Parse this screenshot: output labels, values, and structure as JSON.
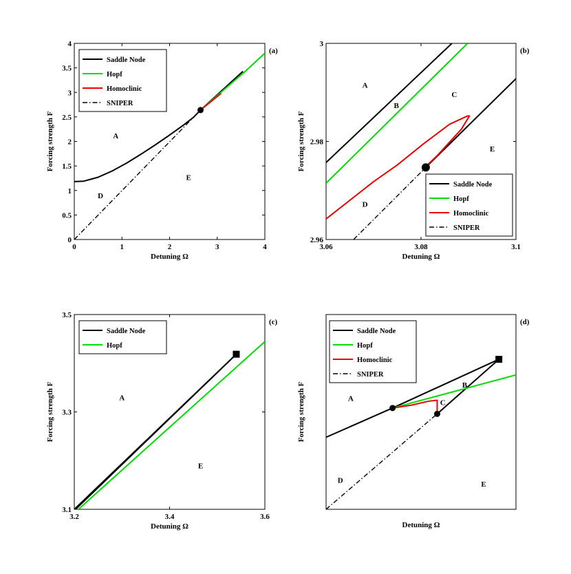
{
  "figure": {
    "xlabel": "Detuning Ω",
    "ylabel": "Forcing strength F"
  },
  "colors": {
    "saddle_node": "#000000",
    "hopf": "#00dd00",
    "homoclinic": "#ee0000",
    "sniper": "#000000"
  },
  "chart_data": [
    {
      "panel": "a",
      "tag": "(a)",
      "type": "line",
      "xlabel": "Detuning Ω",
      "ylabel": "Forcing strength F",
      "xlim": [
        0,
        4
      ],
      "ylim": [
        0,
        4
      ],
      "xticks": [
        0,
        1,
        2,
        3,
        4
      ],
      "yticks": [
        0,
        0.5,
        1,
        1.5,
        2,
        2.5,
        3,
        3.5,
        4
      ],
      "xticklabels": [
        "0",
        "1",
        "2",
        "3",
        "4"
      ],
      "yticklabels": [
        "0",
        "0.5",
        "1",
        "1.5",
        "2",
        "2.5",
        "3",
        "3.5",
        "4"
      ],
      "legend": [
        "Saddle Node",
        "Hopf",
        "Homoclinic",
        "SNIPER"
      ],
      "legend_position": "top-left",
      "series": [
        {
          "name": "Saddle Node",
          "style": "solid",
          "color": "#000000",
          "x": [
            0,
            0.2,
            0.5,
            0.8,
            1.1,
            1.4,
            1.7,
            2.0,
            2.3,
            2.5,
            2.65
          ],
          "y": [
            1.18,
            1.19,
            1.27,
            1.4,
            1.56,
            1.74,
            1.93,
            2.13,
            2.34,
            2.49,
            2.64
          ]
        },
        {
          "name": "Saddle Node",
          "style": "solid",
          "color": "#000000",
          "x": [
            2.65,
            3.54
          ],
          "y": [
            2.64,
            3.43
          ]
        },
        {
          "name": "Hopf",
          "style": "solid",
          "color": "#00dd00",
          "x": [
            2.65,
            3.1,
            3.6,
            4.0
          ],
          "y": [
            2.64,
            3.02,
            3.44,
            3.8
          ]
        },
        {
          "name": "Homoclinic",
          "style": "solid",
          "color": "#ee0000",
          "x": [
            2.65,
            3.08
          ],
          "y": [
            2.64,
            2.98
          ]
        },
        {
          "name": "SNIPER",
          "style": "dashdot",
          "color": "#000000",
          "x": [
            0,
            2.65
          ],
          "y": [
            0,
            2.64
          ]
        }
      ],
      "markers": [
        {
          "shape": "circle",
          "x": 2.65,
          "y": 2.64
        }
      ],
      "regions": [
        {
          "label": "A",
          "x": 0.87,
          "y": 2.12
        },
        {
          "label": "D",
          "x": 0.55,
          "y": 0.9
        },
        {
          "label": "E",
          "x": 2.4,
          "y": 1.27
        }
      ]
    },
    {
      "panel": "b",
      "tag": "(b)",
      "type": "line",
      "xlabel": "Detuning Ω",
      "ylabel": "Forcing strength F",
      "xlim": [
        3.06,
        3.1
      ],
      "ylim": [
        2.96,
        3.0
      ],
      "xticks": [
        3.06,
        3.08,
        3.1
      ],
      "yticks": [
        2.96,
        2.98,
        3.0
      ],
      "xticklabels": [
        "3.06",
        "3.08",
        "3.1"
      ],
      "yticklabels": [
        "2.96",
        "2.98",
        "3"
      ],
      "legend": [
        "Saddle Node",
        "Hopf",
        "Homoclinic",
        "SNIPER"
      ],
      "legend_position": "bottom-right",
      "series": [
        {
          "name": "Saddle Node",
          "style": "solid",
          "color": "#000000",
          "x": [
            3.06,
            3.0865
          ],
          "y": [
            2.9757,
            3.0
          ]
        },
        {
          "name": "Saddle Node",
          "style": "solid",
          "color": "#000000",
          "x": [
            3.081,
            3.1
          ],
          "y": [
            2.9747,
            2.9928
          ]
        },
        {
          "name": "Hopf",
          "style": "solid",
          "color": "#00dd00",
          "x": [
            3.06,
            3.0898
          ],
          "y": [
            2.9715,
            3.0
          ]
        },
        {
          "name": "Homoclinic",
          "style": "solid",
          "color": "#ee0000",
          "x": [
            3.06,
            3.07,
            3.075,
            3.0805,
            3.086,
            3.0898,
            3.0902,
            3.0885,
            3.0835,
            3.081
          ],
          "y": [
            2.9642,
            2.9718,
            2.9752,
            2.9795,
            2.9835,
            2.9852,
            2.9852,
            2.9825,
            2.9772,
            2.9749
          ]
        },
        {
          "name": "SNIPER",
          "style": "dashdot",
          "color": "#000000",
          "x": [
            3.0658,
            3.081
          ],
          "y": [
            2.96,
            2.9747
          ]
        }
      ],
      "markers": [
        {
          "shape": "circle",
          "x": 3.081,
          "y": 2.9747
        }
      ],
      "regions": [
        {
          "label": "A",
          "x": 3.0682,
          "y": 2.9915
        },
        {
          "label": "B",
          "x": 3.0748,
          "y": 2.9874
        },
        {
          "label": "C",
          "x": 3.087,
          "y": 2.9896
        },
        {
          "label": "D",
          "x": 3.0682,
          "y": 2.9672
        },
        {
          "label": "E",
          "x": 3.095,
          "y": 2.9785
        }
      ]
    },
    {
      "panel": "c",
      "tag": "(c)",
      "type": "line",
      "xlabel": "Detuning Ω",
      "ylabel": "Forcing strength F",
      "xlim": [
        3.2,
        3.6
      ],
      "ylim": [
        3.1,
        3.5
      ],
      "xticks": [
        3.2,
        3.4,
        3.6
      ],
      "yticks": [
        3.1,
        3.3,
        3.5
      ],
      "xticklabels": [
        "3.2",
        "3.4",
        "3.6"
      ],
      "yticklabels": [
        "3.1",
        "3.3",
        "3.5"
      ],
      "legend": [
        "Saddle Node",
        "Hopf"
      ],
      "legend_position": "top-left",
      "series": [
        {
          "name": "Saddle Node",
          "style": "solid",
          "color": "#000000",
          "x": [
            3.2,
            3.54
          ],
          "y": [
            3.1,
            3.4185
          ]
        },
        {
          "name": "Saddle Node",
          "style": "solid",
          "color": "#000000",
          "x": [
            3.2,
            3.54
          ],
          "y": [
            3.0975,
            3.4185
          ]
        },
        {
          "name": "Hopf",
          "style": "solid",
          "color": "#00dd00",
          "x": [
            3.2,
            3.6
          ],
          "y": [
            3.0925,
            3.4445
          ]
        }
      ],
      "markers": [
        {
          "shape": "square",
          "x": 3.54,
          "y": 3.4185
        }
      ],
      "regions": [
        {
          "label": "A",
          "x": 3.3,
          "y": 3.33
        },
        {
          "label": "E",
          "x": 3.465,
          "y": 3.19
        }
      ]
    },
    {
      "panel": "d",
      "tag": "(d)",
      "type": "line",
      "xlabel": "Detuning Ω",
      "ylabel": "Forcing strength F",
      "xlim": [
        0,
        10
      ],
      "ylim": [
        0,
        10
      ],
      "xticks": [],
      "yticks": [],
      "xticklabels": [],
      "yticklabels": [],
      "legend": [
        "Saddle Node",
        "Hopf",
        "Homoclinic",
        "SNIPER"
      ],
      "legend_position": "top-left",
      "series": [
        {
          "name": "Saddle Node",
          "style": "solid",
          "color": "#000000",
          "x": [
            0,
            3.5,
            9.1
          ],
          "y": [
            3.7,
            5.2,
            7.7
          ]
        },
        {
          "name": "Saddle Node",
          "style": "solid",
          "color": "#000000",
          "x": [
            5.85,
            9.1
          ],
          "y": [
            4.9,
            7.7
          ]
        },
        {
          "name": "Hopf",
          "style": "solid",
          "color": "#00dd00",
          "x": [
            3.5,
            10
          ],
          "y": [
            5.2,
            6.9
          ]
        },
        {
          "name": "Homoclinic",
          "style": "solid",
          "color": "#ee0000",
          "x": [
            3.5,
            4.5,
            5.4,
            5.85,
            5.85
          ],
          "y": [
            5.2,
            5.35,
            5.55,
            5.6,
            4.9
          ]
        },
        {
          "name": "SNIPER",
          "style": "dashdot",
          "color": "#000000",
          "x": [
            0,
            5.85
          ],
          "y": [
            0,
            4.9
          ]
        }
      ],
      "markers": [
        {
          "shape": "circle",
          "x": 3.5,
          "y": 5.2
        },
        {
          "shape": "circle",
          "x": 5.85,
          "y": 4.9
        },
        {
          "shape": "square",
          "x": 9.1,
          "y": 7.7
        }
      ],
      "regions": [
        {
          "label": "A",
          "x": 1.3,
          "y": 5.7
        },
        {
          "label": "B",
          "x": 7.3,
          "y": 6.4
        },
        {
          "label": "C",
          "x": 6.15,
          "y": 5.5
        },
        {
          "label": "D",
          "x": 0.75,
          "y": 1.5
        },
        {
          "label": "E",
          "x": 8.3,
          "y": 1.3
        }
      ]
    }
  ]
}
